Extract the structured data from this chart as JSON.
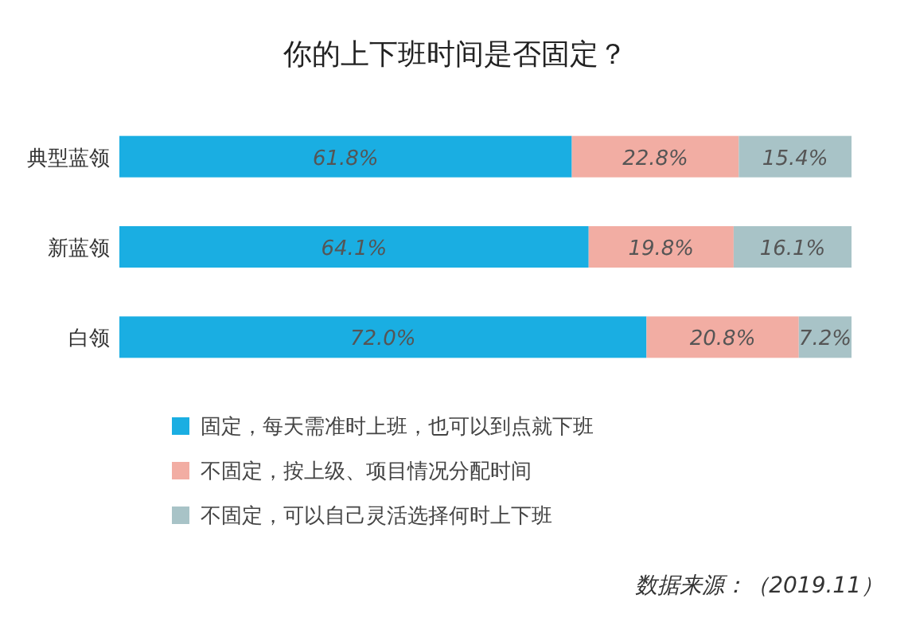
{
  "chart_data": {
    "type": "bar",
    "orientation": "horizontal",
    "stacked": true,
    "title": "你的上下班时间是否固定？",
    "categories": [
      "典型蓝领",
      "新蓝领",
      "白领"
    ],
    "series": [
      {
        "name": "固定，每天需准时上班，也可以到点就下班",
        "color": "#1aaee2",
        "values": [
          61.8,
          64.1,
          72.0
        ],
        "value_labels": [
          "61.8%",
          "64.1%",
          "72.0%"
        ]
      },
      {
        "name": "不固定，按上级、项目情况分配时间",
        "color": "#f2ada3",
        "values": [
          22.8,
          19.8,
          20.8
        ],
        "value_labels": [
          "22.8%",
          "19.8%",
          "20.8%"
        ]
      },
      {
        "name": "不固定，可以自己灵活选择何时上下班",
        "color": "#a8c3c7",
        "values": [
          15.4,
          16.1,
          7.2
        ],
        "value_labels": [
          "15.4%",
          "16.1%",
          "7.2%"
        ]
      }
    ],
    "xlim": [
      0,
      100
    ],
    "tick_labels": "y",
    "legend": "bottom left",
    "annotations": [
      "数据来源：（2019.11）"
    ]
  }
}
